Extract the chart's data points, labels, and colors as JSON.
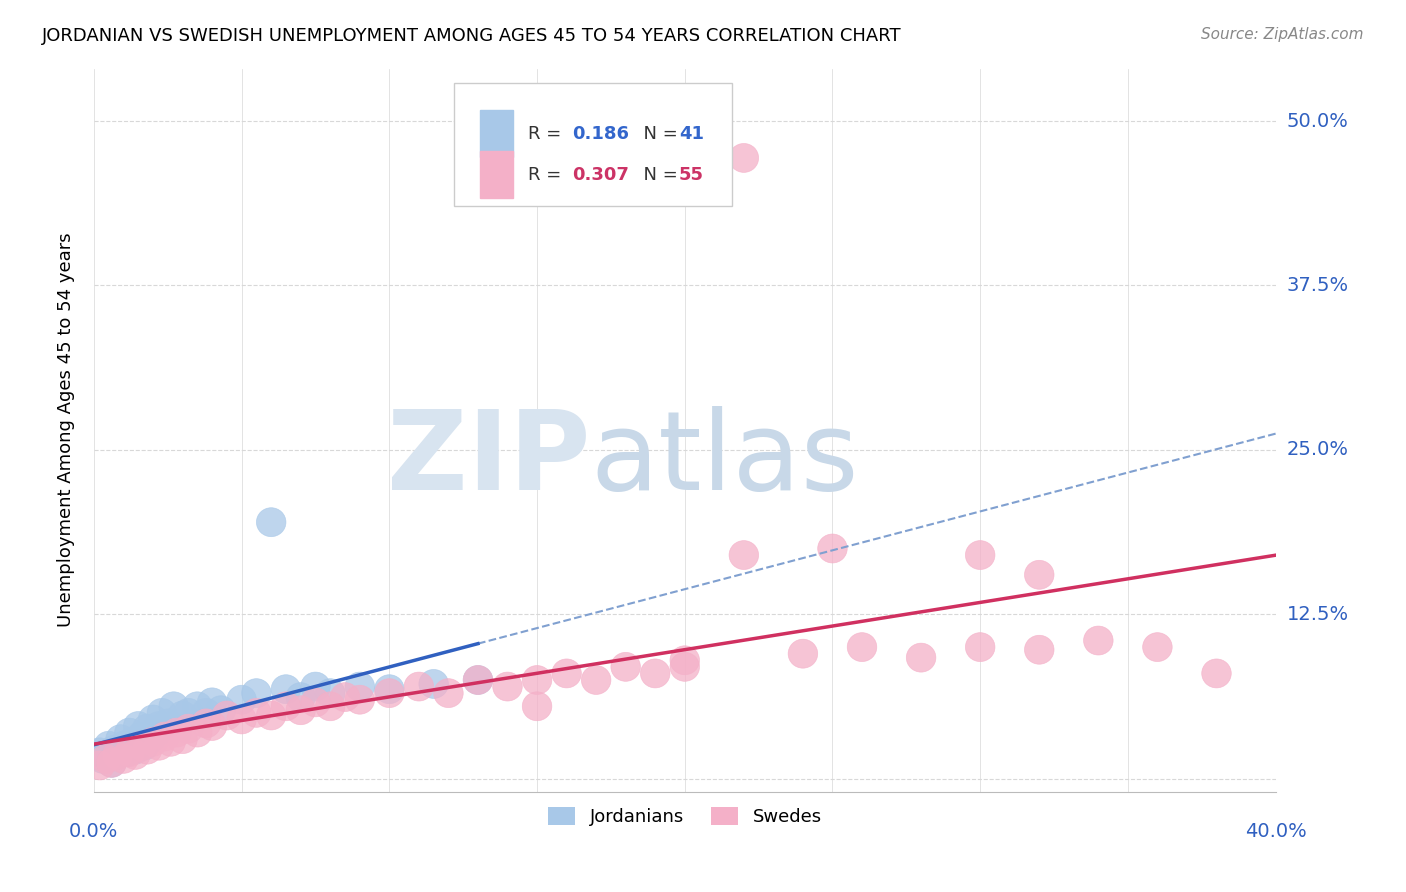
{
  "title": "JORDANIAN VS SWEDISH UNEMPLOYMENT AMONG AGES 45 TO 54 YEARS CORRELATION CHART",
  "source": "Source: ZipAtlas.com",
  "xlim": [
    0.0,
    0.4
  ],
  "ylim": [
    -0.01,
    0.54
  ],
  "yticks": [
    0.0,
    0.125,
    0.25,
    0.375,
    0.5
  ],
  "ytick_labels": [
    "",
    "12.5%",
    "25.0%",
    "37.5%",
    "50.0%"
  ],
  "xtick_labels_show": [
    "0.0%",
    "40.0%"
  ],
  "jordanian_color": "#a8c8e8",
  "swedish_color": "#f4b0c8",
  "jordanian_line_color": "#3060c0",
  "swedish_line_color": "#d03060",
  "dashed_line_color": "#80a0d0",
  "label_color": "#3060c0",
  "grid_color": "#d8d8d8",
  "watermark_zip_color": "#d8e4f0",
  "watermark_atlas_color": "#c8d8e8",
  "jordan_x": [
    0.002,
    0.003,
    0.004,
    0.005,
    0.006,
    0.007,
    0.008,
    0.009,
    0.01,
    0.011,
    0.012,
    0.013,
    0.014,
    0.015,
    0.016,
    0.017,
    0.018,
    0.019,
    0.02,
    0.021,
    0.022,
    0.023,
    0.025,
    0.027,
    0.03,
    0.032,
    0.035,
    0.038,
    0.04,
    0.043,
    0.05,
    0.055,
    0.06,
    0.065,
    0.07,
    0.075,
    0.08,
    0.09,
    0.1,
    0.115,
    0.13
  ],
  "jordan_y": [
    0.02,
    0.015,
    0.018,
    0.025,
    0.012,
    0.022,
    0.018,
    0.03,
    0.025,
    0.02,
    0.035,
    0.028,
    0.022,
    0.04,
    0.032,
    0.025,
    0.038,
    0.03,
    0.045,
    0.035,
    0.04,
    0.05,
    0.042,
    0.055,
    0.048,
    0.05,
    0.055,
    0.05,
    0.058,
    0.052,
    0.06,
    0.065,
    0.195,
    0.068,
    0.062,
    0.07,
    0.065,
    0.07,
    0.068,
    0.072,
    0.075
  ],
  "sweden_x": [
    0.002,
    0.004,
    0.006,
    0.008,
    0.01,
    0.012,
    0.014,
    0.016,
    0.018,
    0.02,
    0.022,
    0.024,
    0.026,
    0.028,
    0.03,
    0.032,
    0.035,
    0.038,
    0.04,
    0.045,
    0.05,
    0.055,
    0.06,
    0.065,
    0.07,
    0.075,
    0.08,
    0.085,
    0.09,
    0.1,
    0.11,
    0.12,
    0.13,
    0.14,
    0.15,
    0.16,
    0.17,
    0.18,
    0.19,
    0.2,
    0.22,
    0.24,
    0.26,
    0.28,
    0.3,
    0.32,
    0.34,
    0.36,
    0.38,
    0.2,
    0.15,
    0.25,
    0.3,
    0.22,
    0.32
  ],
  "sweden_y": [
    0.01,
    0.015,
    0.012,
    0.018,
    0.015,
    0.02,
    0.018,
    0.025,
    0.022,
    0.028,
    0.025,
    0.032,
    0.028,
    0.035,
    0.03,
    0.038,
    0.035,
    0.042,
    0.04,
    0.048,
    0.045,
    0.05,
    0.048,
    0.055,
    0.052,
    0.058,
    0.055,
    0.062,
    0.06,
    0.065,
    0.07,
    0.065,
    0.075,
    0.07,
    0.075,
    0.08,
    0.075,
    0.085,
    0.08,
    0.09,
    0.472,
    0.095,
    0.1,
    0.092,
    0.1,
    0.098,
    0.105,
    0.1,
    0.08,
    0.085,
    0.055,
    0.175,
    0.17,
    0.17,
    0.155
  ]
}
